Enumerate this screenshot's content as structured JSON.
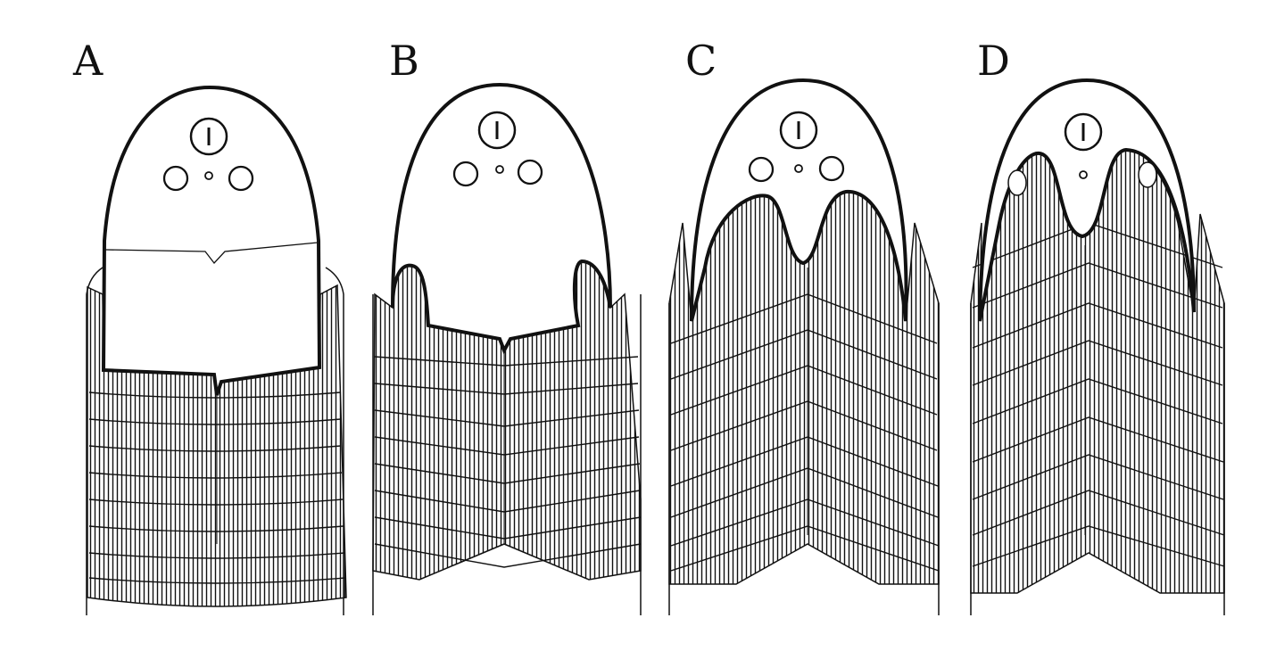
{
  "figure": {
    "panels": [
      {
        "label": "A",
        "stage": "head-plate-separate"
      },
      {
        "label": "B",
        "stage": "lateral-lobes-emerging"
      },
      {
        "label": "C",
        "stage": "lobes-advanced-with-median-notch"
      },
      {
        "label": "D",
        "stage": "lobes-enclosing-lateral-eyes"
      }
    ]
  },
  "colors": {
    "ink": "#111111",
    "paper": "#ffffff"
  },
  "icons": {
    "median-eye": "median-eye-icon",
    "lateral-eye": "lateral-eye-icon"
  }
}
